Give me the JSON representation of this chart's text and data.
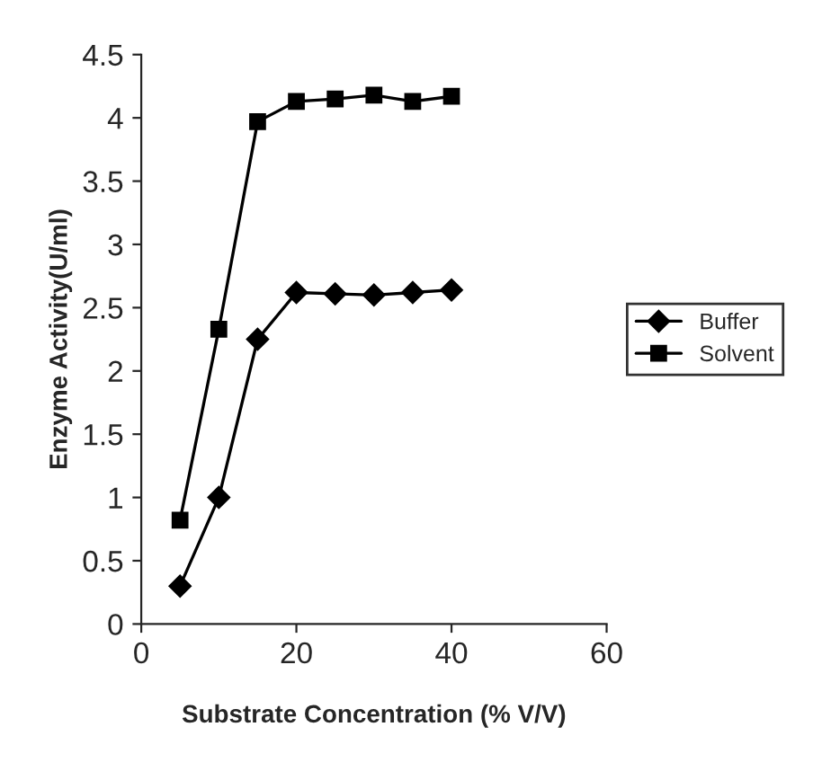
{
  "chart_data": {
    "type": "line",
    "xlabel": "Substrate Concentration (% V/V)",
    "ylabel": "Enzyme Activity(U/ml)",
    "x": [
      5,
      10,
      15,
      20,
      25,
      30,
      35,
      40
    ],
    "series": [
      {
        "name": "Buffer",
        "color": "#000000",
        "marker": "diamond",
        "values": [
          0.3,
          1.0,
          2.25,
          2.62,
          2.61,
          2.6,
          2.62,
          2.64
        ]
      },
      {
        "name": "Solvent",
        "color": "#000000",
        "marker": "square",
        "values": [
          0.82,
          2.33,
          3.97,
          4.13,
          4.15,
          4.18,
          4.13,
          4.17
        ]
      }
    ],
    "xlim": [
      0,
      60
    ],
    "xticks": [
      0,
      20,
      40,
      60
    ],
    "ylim": [
      0,
      4.5
    ],
    "yticks": [
      0,
      0.5,
      1,
      1.5,
      2,
      2.5,
      3,
      3.5,
      4,
      4.5
    ],
    "grid": false,
    "legend": "right",
    "line_style": "solid"
  }
}
